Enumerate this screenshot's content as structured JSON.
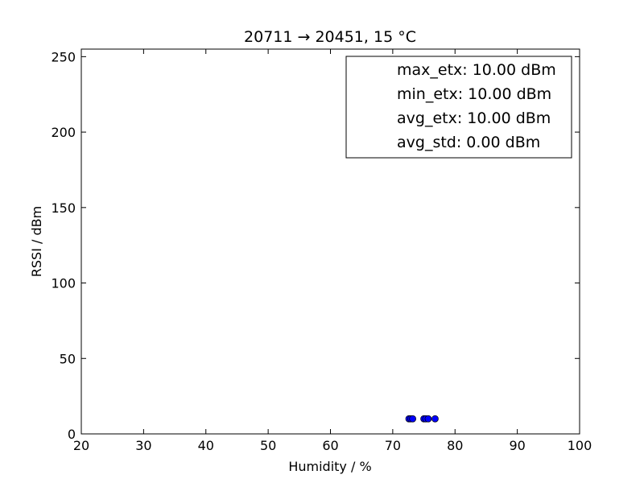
{
  "chart_data": {
    "type": "scatter",
    "title": "20711 → 20451, 15 °C",
    "xlabel": "Humidity / %",
    "ylabel": "RSSI / dBm",
    "xlim": [
      20,
      100
    ],
    "ylim": [
      0,
      255
    ],
    "xticks": [
      "20",
      "30",
      "40",
      "50",
      "60",
      "70",
      "80",
      "90",
      "100"
    ],
    "yticks": [
      "0",
      "50",
      "100",
      "150",
      "200",
      "250"
    ],
    "grid": false,
    "legend_position": "top-right",
    "legend": [
      "max_etx: 10.00 dBm",
      "min_etx: 10.00 dBm",
      "avg_etx: 10.00 dBm",
      "avg_std: 0.00 dBm"
    ],
    "marker_color": "#0000ff",
    "points": [
      {
        "x": 72.6,
        "y": 10
      },
      {
        "x": 72.9,
        "y": 10
      },
      {
        "x": 73.2,
        "y": 10
      },
      {
        "x": 75.0,
        "y": 10
      },
      {
        "x": 75.3,
        "y": 10
      },
      {
        "x": 75.7,
        "y": 10
      },
      {
        "x": 76.8,
        "y": 10
      }
    ]
  }
}
